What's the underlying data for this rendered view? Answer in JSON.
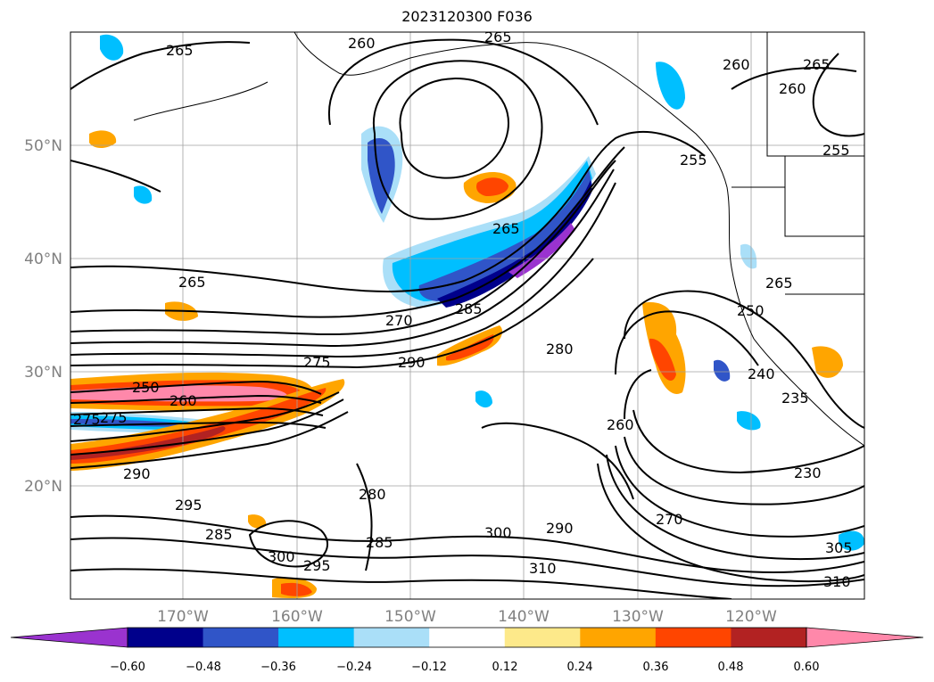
{
  "title": "2023120300 F036",
  "map": {
    "lat_labels": [
      "50°N",
      "40°N",
      "30°N",
      "20°N"
    ],
    "lon_labels": [
      "170°W",
      "160°W",
      "150°W",
      "140°W",
      "130°W",
      "120°W"
    ],
    "grid": true
  },
  "colorbar": {
    "extend": "both",
    "tick_labels": [
      "−0.60",
      "−0.48",
      "−0.36",
      "−0.24",
      "−0.12",
      "0.12",
      "0.24",
      "0.36",
      "0.48",
      "0.60"
    ],
    "colors": [
      "#9a33cf",
      "#00008b",
      "#3055c8",
      "#00bfff",
      "#aadff8",
      "#ffffff",
      "#fde98a",
      "#ffa500",
      "#ff4500",
      "#b22222",
      "#ff88aa"
    ]
  },
  "contour_labels": [
    "265",
    "260",
    "265",
    "260",
    "265",
    "260",
    "255",
    "265",
    "265",
    "270",
    "275",
    "285",
    "290",
    "280",
    "260",
    "270",
    "300",
    "290",
    "295",
    "285",
    "310",
    "305",
    "310",
    "250",
    "260",
    "275",
    "290",
    "285",
    "295",
    "280",
    "300",
    "255",
    "240",
    "230",
    "235",
    "265",
    "250",
    "275"
  ]
}
